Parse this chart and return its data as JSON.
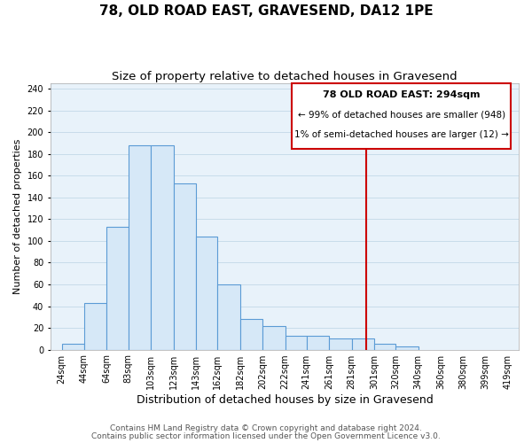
{
  "title": "78, OLD ROAD EAST, GRAVESEND, DA12 1PE",
  "subtitle": "Size of property relative to detached houses in Gravesend",
  "xlabel": "Distribution of detached houses by size in Gravesend",
  "ylabel": "Number of detached properties",
  "bar_left_edges": [
    24,
    44,
    64,
    83,
    103,
    123,
    143,
    162,
    182,
    202,
    222,
    241,
    261,
    281,
    301,
    320,
    340,
    360,
    380,
    399
  ],
  "bar_widths": [
    20,
    20,
    19,
    20,
    20,
    20,
    19,
    20,
    20,
    20,
    19,
    20,
    20,
    20,
    19,
    20,
    20,
    20,
    19,
    20
  ],
  "bar_heights": [
    5,
    43,
    113,
    188,
    188,
    153,
    104,
    60,
    28,
    22,
    13,
    13,
    10,
    10,
    5,
    3,
    0,
    0,
    0,
    0
  ],
  "bar_facecolor": "#d6e8f7",
  "bar_edgecolor": "#5b9bd5",
  "grid_color": "#c8dcea",
  "background_color": "#e8f2fa",
  "vline_x": 294,
  "vline_color": "#cc0000",
  "annotation_title": "78 OLD ROAD EAST: 294sqm",
  "annotation_line1": "← 99% of detached houses are smaller (948)",
  "annotation_line2": "1% of semi-detached houses are larger (12) →",
  "xtick_labels": [
    "24sqm",
    "44sqm",
    "64sqm",
    "83sqm",
    "103sqm",
    "123sqm",
    "143sqm",
    "162sqm",
    "182sqm",
    "202sqm",
    "222sqm",
    "241sqm",
    "261sqm",
    "281sqm",
    "301sqm",
    "320sqm",
    "340sqm",
    "360sqm",
    "380sqm",
    "399sqm",
    "419sqm"
  ],
  "xtick_positions": [
    24,
    44,
    64,
    83,
    103,
    123,
    143,
    162,
    182,
    202,
    222,
    241,
    261,
    281,
    301,
    320,
    340,
    360,
    380,
    399,
    419
  ],
  "ylim": [
    0,
    245
  ],
  "xlim": [
    14,
    429
  ],
  "yticks": [
    0,
    20,
    40,
    60,
    80,
    100,
    120,
    140,
    160,
    180,
    200,
    220,
    240
  ],
  "footnote1": "Contains HM Land Registry data © Crown copyright and database right 2024.",
  "footnote2": "Contains public sector information licensed under the Open Government Licence v3.0.",
  "title_fontsize": 11,
  "subtitle_fontsize": 9.5,
  "xlabel_fontsize": 9,
  "ylabel_fontsize": 8,
  "tick_fontsize": 7,
  "annotation_fontsize": 8,
  "footnote_fontsize": 6.5
}
